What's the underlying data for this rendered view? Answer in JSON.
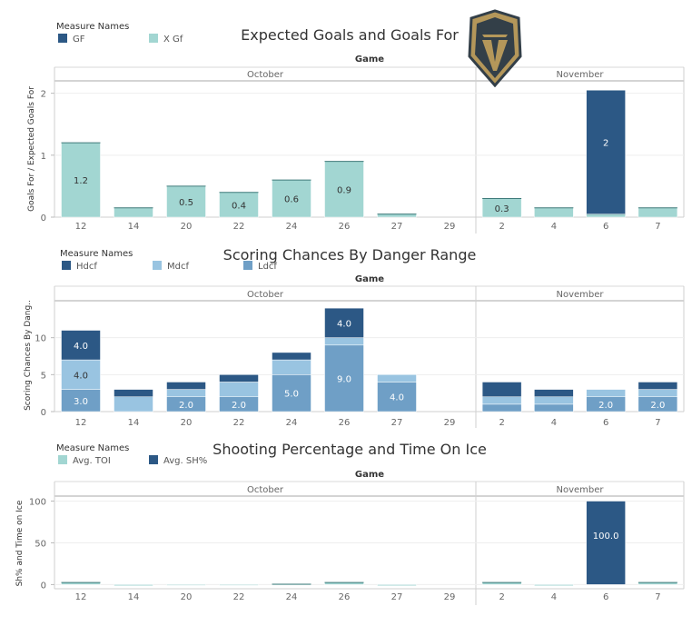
{
  "colors": {
    "dark_blue": "#2c5885",
    "mid_blue": "#6f9fc6",
    "light_blue": "#99c4e1",
    "teal": "#a2d6d2",
    "logo_gold": "#b4975a",
    "logo_steel": "#333f48",
    "logo_red": "#c8102e"
  },
  "logo": {
    "icon": "golden-knights-helmet-icon"
  },
  "chart_data": [
    {
      "id": "goals",
      "type": "bar",
      "title": "Expected Goals and Goals For",
      "column_header": "Game",
      "ylabel": "Goals For / Expected Goals For",
      "ylim": [
        0,
        2.2
      ],
      "yticks": [
        0,
        1,
        2
      ],
      "legend": {
        "title": "Measure Names",
        "items": [
          {
            "name": "GF",
            "color": "#2c5885"
          },
          {
            "name": "X Gf",
            "color": "#a2d6d2"
          }
        ]
      },
      "groups": [
        {
          "name": "October",
          "categories": [
            "12",
            "14",
            "20",
            "22",
            "24",
            "26",
            "27",
            "29"
          ]
        },
        {
          "name": "November",
          "categories": [
            "2",
            "4",
            "6",
            "7"
          ]
        }
      ],
      "series": [
        {
          "name": "X Gf",
          "color": "#a2d6d2",
          "values": [
            1.2,
            0.15,
            0.5,
            0.4,
            0.6,
            0.9,
            0.05,
            0,
            0.3,
            0.15,
            0.05,
            0.15
          ],
          "labels": [
            "1.2",
            "",
            "0.5",
            "0.4",
            "0.6",
            "0.9",
            "",
            "",
            "0.3",
            "",
            "",
            ""
          ]
        },
        {
          "name": "GF",
          "color": "#2c5885",
          "values": [
            0,
            0,
            0,
            0,
            0,
            0,
            0,
            0,
            0,
            0,
            2,
            0
          ],
          "labels": [
            "",
            "",
            "",
            "",
            "",
            "",
            "",
            "",
            "",
            "",
            "2",
            ""
          ]
        }
      ],
      "cap_series": [
        "GF"
      ]
    },
    {
      "id": "danger",
      "type": "bar",
      "title": "Scoring Chances By Danger Range",
      "column_header": "Game",
      "ylabel": "Scoring Chances By Dang..",
      "ylim": [
        0,
        15
      ],
      "yticks": [
        0,
        5,
        10
      ],
      "legend": {
        "title": "Measure Names",
        "items": [
          {
            "name": "Hdcf",
            "color": "#2c5885"
          },
          {
            "name": "Mdcf",
            "color": "#99c4e1"
          },
          {
            "name": "Ldcf",
            "color": "#6f9fc6"
          }
        ]
      },
      "groups": [
        {
          "name": "October",
          "categories": [
            "12",
            "14",
            "20",
            "22",
            "24",
            "26",
            "27",
            "29"
          ]
        },
        {
          "name": "November",
          "categories": [
            "2",
            "4",
            "6",
            "7"
          ]
        }
      ],
      "series": [
        {
          "name": "Ldcf",
          "color": "#6f9fc6",
          "values": [
            3,
            0,
            2,
            2,
            5,
            9,
            4,
            0,
            1,
            1,
            2,
            2
          ],
          "labels": [
            "3.0",
            "",
            "2.0",
            "2.0",
            "5.0",
            "9.0",
            "4.0",
            "",
            "",
            "",
            "2.0",
            "2.0"
          ]
        },
        {
          "name": "Mdcf",
          "color": "#99c4e1",
          "values": [
            4,
            2,
            1,
            2,
            2,
            1,
            1,
            0,
            1,
            1,
            1,
            1
          ],
          "labels": [
            "4.0",
            "",
            "",
            "",
            "",
            "",
            "",
            "",
            "",
            "",
            "",
            ""
          ]
        },
        {
          "name": "Hdcf",
          "color": "#2c5885",
          "values": [
            4,
            1,
            1,
            1,
            1,
            4,
            0,
            0,
            2,
            1,
            0,
            1
          ],
          "labels": [
            "4.0",
            "",
            "",
            "",
            "",
            "4.0",
            "",
            "",
            "",
            "",
            "",
            ""
          ]
        }
      ],
      "cap_series": []
    },
    {
      "id": "shooting",
      "type": "bar",
      "title": "Shooting Percentage and Time On Ice",
      "column_header": "Game",
      "ylabel": "Sh% and Time on Ice",
      "ylim": [
        -5,
        106
      ],
      "yticks": [
        0,
        50,
        100
      ],
      "legend": {
        "title": "Measure Names",
        "items": [
          {
            "name": "Avg. TOI",
            "color": "#a2d6d2"
          },
          {
            "name": "Avg. SH%",
            "color": "#2c5885"
          }
        ]
      },
      "groups": [
        {
          "name": "October",
          "categories": [
            "12",
            "14",
            "20",
            "22",
            "24",
            "26",
            "27",
            "29"
          ]
        },
        {
          "name": "November",
          "categories": [
            "2",
            "4",
            "6",
            "7"
          ]
        }
      ],
      "series": [
        {
          "name": "Avg. TOI",
          "color": "#a2d6d2",
          "values": [
            2.5,
            -1.5,
            -1,
            -1,
            0.5,
            2.5,
            -1.5,
            0,
            2.5,
            -1.5,
            0,
            2.5
          ],
          "labels": [
            "",
            "",
            "",
            "",
            "",
            "",
            "",
            "",
            "",
            "",
            "",
            ""
          ]
        },
        {
          "name": "Avg. SH%",
          "color": "#2c5885",
          "values": [
            0,
            0,
            0,
            0,
            0,
            0,
            0,
            0,
            0,
            0,
            100,
            0
          ],
          "labels": [
            "",
            "",
            "",
            "",
            "",
            "",
            "",
            "",
            "",
            "",
            "100.0",
            ""
          ]
        }
      ],
      "cap_series": [
        "Avg. SH%"
      ]
    }
  ]
}
